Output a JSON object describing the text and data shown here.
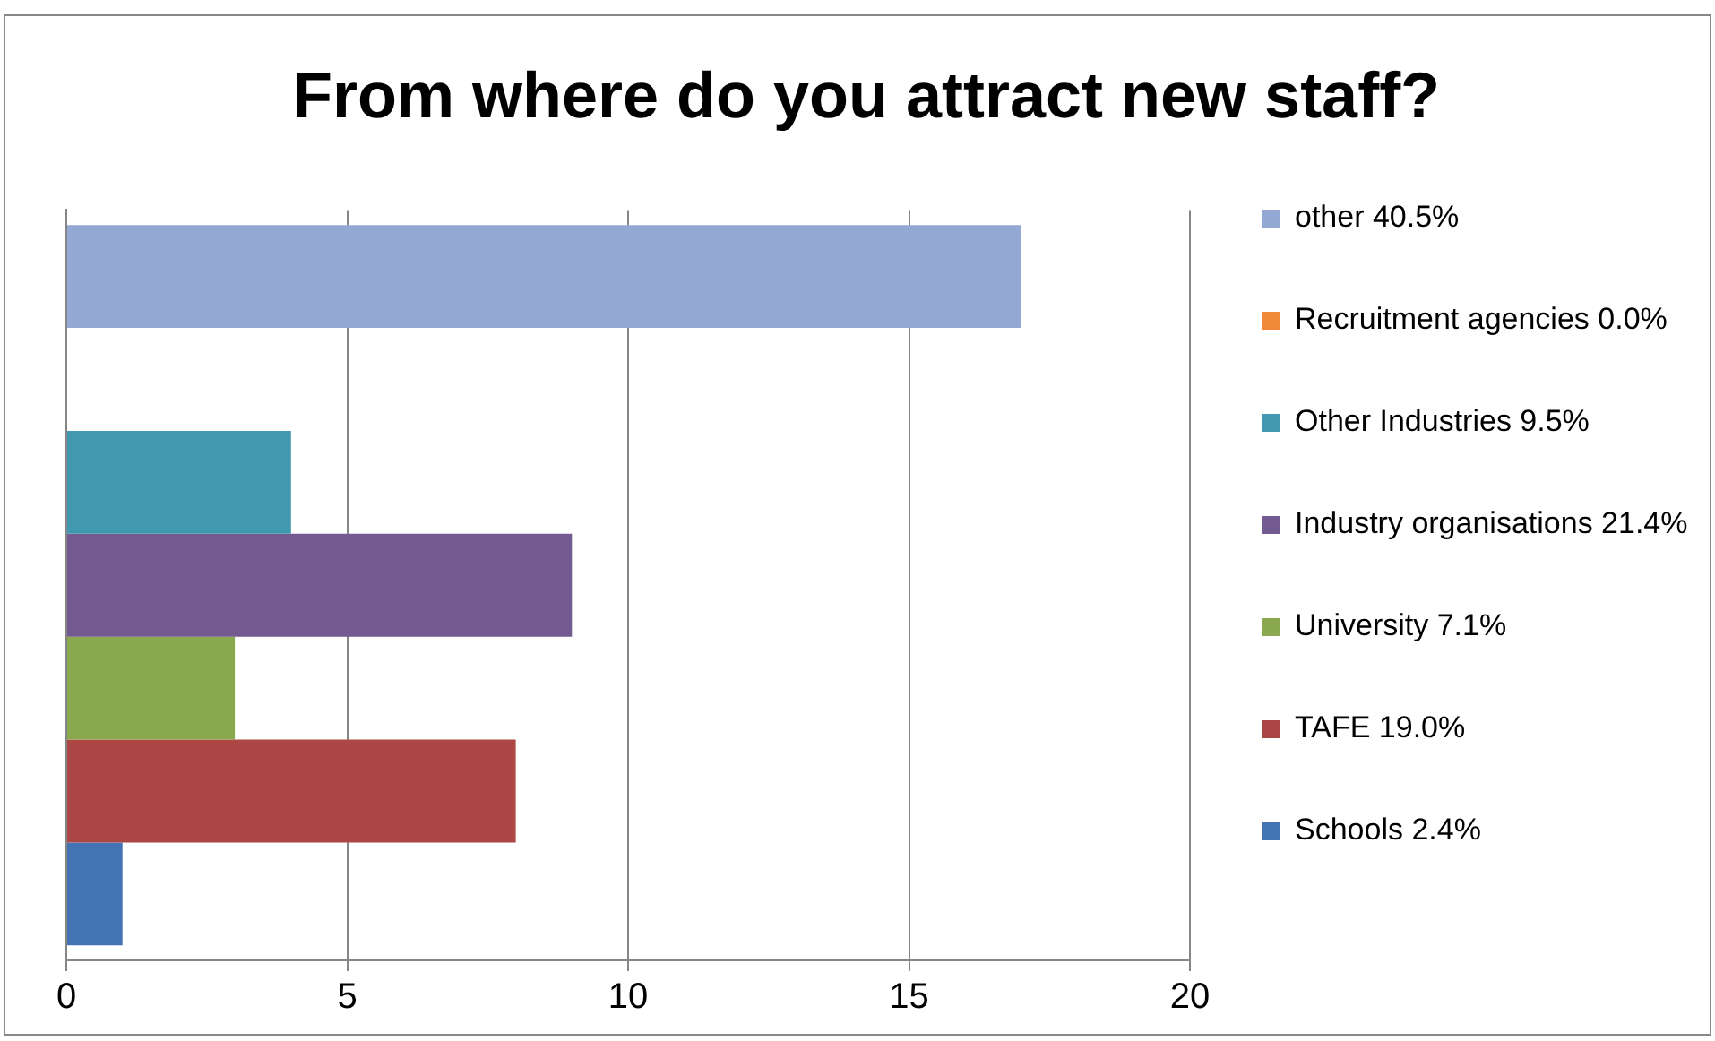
{
  "chart_data": {
    "type": "bar",
    "orientation": "horizontal",
    "title": "From where do you attract new staff?",
    "categories": [
      null
    ],
    "series": [
      {
        "name": "other 40.5%",
        "color": "#93a9d4",
        "values": [
          17
        ]
      },
      {
        "name": "Recruitment agencies 0.0%",
        "color": "#f08a3a",
        "values": [
          0
        ]
      },
      {
        "name": "Other Industries 9.5%",
        "color": "#4099ae",
        "values": [
          4
        ]
      },
      {
        "name": "Industry organisations 21.4%",
        "color": "#735a91",
        "values": [
          9
        ]
      },
      {
        "name": "University 7.1%",
        "color": "#8aa94f",
        "values": [
          3
        ]
      },
      {
        "name": "TAFE 19.0%",
        "color": "#ad4745",
        "values": [
          8
        ]
      },
      {
        "name": "Schools 2.4%",
        "color": "#4373b3",
        "values": [
          1
        ]
      }
    ],
    "xlim": [
      0,
      20
    ],
    "xticks": [
      0,
      5,
      10,
      15,
      20
    ],
    "grid": "x",
    "legend": "right"
  }
}
